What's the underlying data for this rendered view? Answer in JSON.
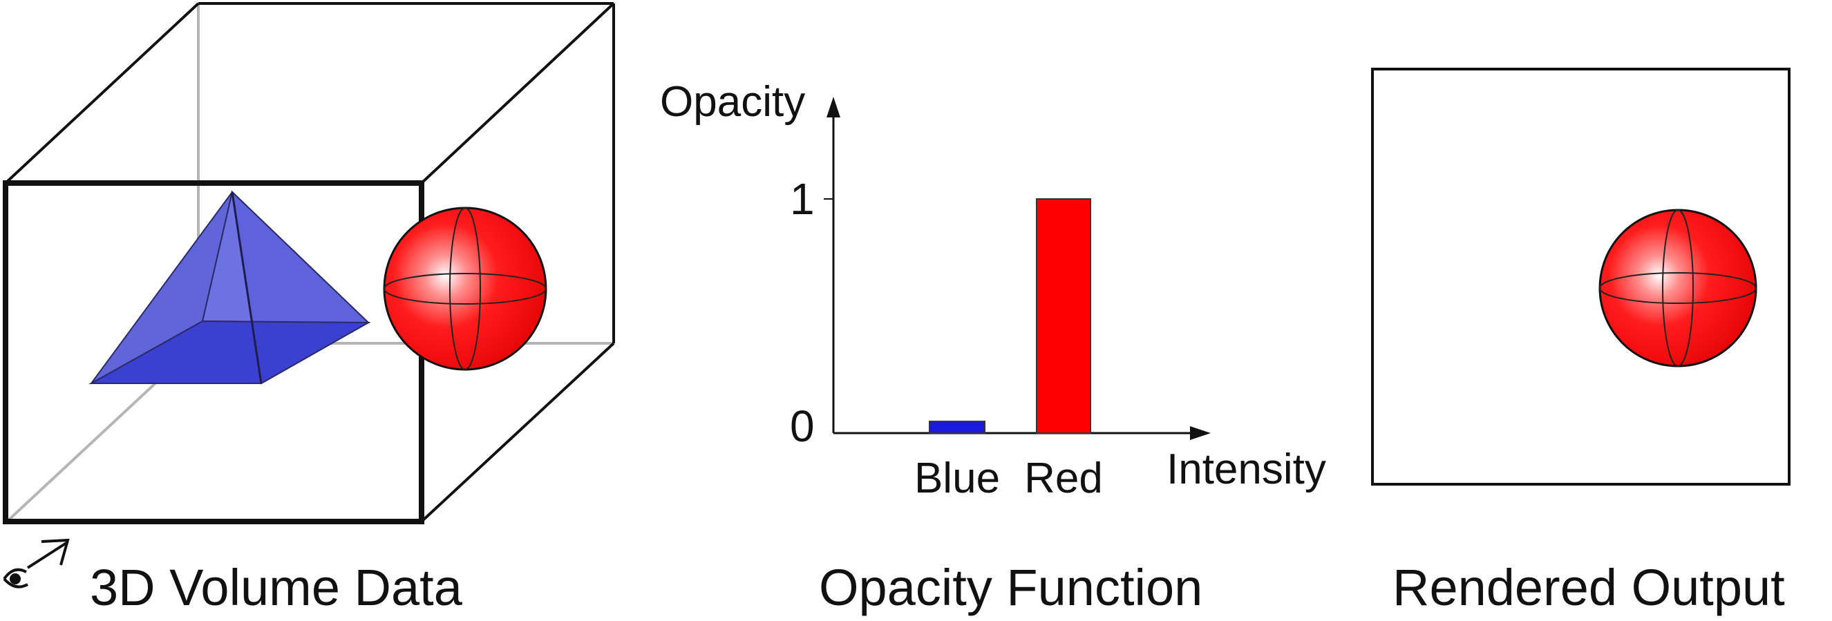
{
  "panels": {
    "volume": {
      "caption": "3D Volume Data"
    },
    "opacity": {
      "caption": "Opacity Function"
    },
    "rendered": {
      "caption": "Rendered Output"
    }
  },
  "objects": {
    "pyramid_color": "#4b50d6",
    "sphere_color": "#ff0000"
  },
  "chart_data": {
    "type": "bar",
    "categories": [
      "Blue",
      "Red"
    ],
    "values": [
      0.05,
      1
    ],
    "colors": [
      "#1a1adf",
      "#ff0000"
    ],
    "ylabel": "Opacity",
    "xlabel": "Intensity",
    "yticks": [
      "0",
      "1"
    ],
    "ylim": [
      0,
      1
    ]
  }
}
